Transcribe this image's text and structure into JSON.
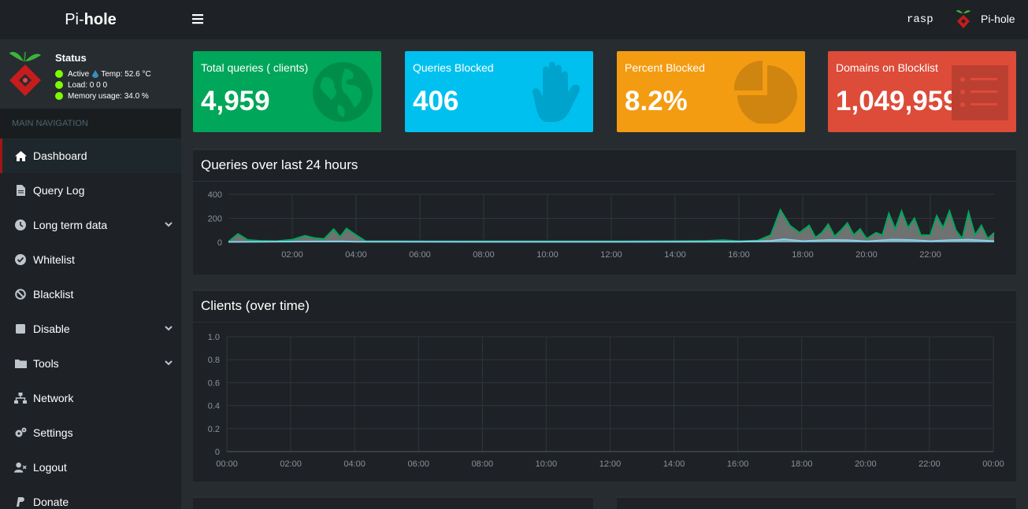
{
  "brand": {
    "prefix": "Pi-",
    "bold": "hole"
  },
  "status": {
    "title": "Status",
    "active": "Active",
    "temp": "Temp: 52.6 °C",
    "load": "Load:  0  0  0",
    "memory": "Memory usage:  34.0 %"
  },
  "nav": {
    "header": "MAIN NAVIGATION",
    "items": [
      {
        "label": "Dashboard",
        "icon": "home-icon"
      },
      {
        "label": "Query Log",
        "icon": "file-icon"
      },
      {
        "label": "Long term data",
        "icon": "clock-icon"
      },
      {
        "label": "Whitelist",
        "icon": "check-circle-icon"
      },
      {
        "label": "Blacklist",
        "icon": "ban-icon"
      },
      {
        "label": "Disable",
        "icon": "stop-icon"
      },
      {
        "label": "Tools",
        "icon": "folder-icon"
      },
      {
        "label": "Network",
        "icon": "network-icon"
      },
      {
        "label": "Settings",
        "icon": "cogs-icon"
      },
      {
        "label": "Logout",
        "icon": "user-times-icon"
      },
      {
        "label": "Donate",
        "icon": "paypal-icon"
      }
    ]
  },
  "topbar": {
    "hostname": "rasp",
    "user": "Pi-hole"
  },
  "boxes": {
    "total": {
      "label": "Total queries (   clients)",
      "value": "4,959",
      "color": "#00a65a",
      "icon": "globe-icon"
    },
    "blocked": {
      "label": "Queries Blocked",
      "value": "406",
      "color": "#00c0ef",
      "icon": "hand-icon"
    },
    "percent": {
      "label": "Percent Blocked",
      "value": "8.2%",
      "color": "#f39c12",
      "icon": "pie-chart-icon"
    },
    "domains": {
      "label": "Domains on Blocklist",
      "value": "1,049,959",
      "color": "#dd4b39",
      "icon": "list-icon"
    }
  },
  "queries_panel": {
    "title": "Queries over last 24 hours"
  },
  "clients_panel": {
    "title": "Clients (over time)"
  },
  "chart_data": [
    {
      "type": "area",
      "title": "Queries over last 24 hours",
      "x_tick_labels": [
        "02:00",
        "04:00",
        "06:00",
        "08:00",
        "10:00",
        "12:00",
        "14:00",
        "16:00",
        "18:00",
        "20:00",
        "22:00"
      ],
      "y_tick_labels": [
        "0",
        "200",
        "400"
      ],
      "ylim": [
        0,
        400
      ],
      "xlim": [
        0,
        24
      ],
      "series": [
        {
          "color": "#00a65a",
          "points": [
            [
              0,
              5
            ],
            [
              0.3,
              70
            ],
            [
              0.6,
              20
            ],
            [
              1,
              12
            ],
            [
              1.5,
              10
            ],
            [
              2,
              22
            ],
            [
              2.4,
              55
            ],
            [
              2.7,
              35
            ],
            [
              3,
              28
            ],
            [
              3.3,
              110
            ],
            [
              3.5,
              45
            ],
            [
              3.7,
              115
            ],
            [
              4,
              60
            ],
            [
              4.3,
              10
            ],
            [
              6,
              8
            ],
            [
              8,
              8
            ],
            [
              10,
              8
            ],
            [
              12,
              8
            ],
            [
              14,
              10
            ],
            [
              15,
              12
            ],
            [
              15.5,
              18
            ],
            [
              16,
              10
            ],
            [
              16.6,
              15
            ],
            [
              17,
              60
            ],
            [
              17.3,
              270
            ],
            [
              17.6,
              140
            ],
            [
              17.9,
              80
            ],
            [
              18.2,
              140
            ],
            [
              18.4,
              40
            ],
            [
              18.6,
              80
            ],
            [
              18.8,
              150
            ],
            [
              19,
              50
            ],
            [
              19.2,
              100
            ],
            [
              19.4,
              160
            ],
            [
              19.6,
              60
            ],
            [
              19.8,
              110
            ],
            [
              20,
              30
            ],
            [
              20.3,
              80
            ],
            [
              20.5,
              60
            ],
            [
              20.7,
              240
            ],
            [
              20.9,
              110
            ],
            [
              21.1,
              260
            ],
            [
              21.3,
              120
            ],
            [
              21.5,
              200
            ],
            [
              21.7,
              60
            ],
            [
              22,
              60
            ],
            [
              22.2,
              220
            ],
            [
              22.4,
              120
            ],
            [
              22.6,
              260
            ],
            [
              22.8,
              100
            ],
            [
              23,
              30
            ],
            [
              23.2,
              250
            ],
            [
              23.4,
              60
            ],
            [
              23.6,
              140
            ],
            [
              23.8,
              30
            ],
            [
              24,
              80
            ]
          ]
        },
        {
          "color": "#87ceeb",
          "points": [
            [
              0,
              3
            ],
            [
              3.5,
              8
            ],
            [
              4,
              5
            ],
            [
              8,
              4
            ],
            [
              12,
              4
            ],
            [
              16,
              5
            ],
            [
              17,
              12
            ],
            [
              17.4,
              25
            ],
            [
              18,
              10
            ],
            [
              18.8,
              20
            ],
            [
              19.4,
              18
            ],
            [
              20,
              8
            ],
            [
              20.8,
              22
            ],
            [
              21.4,
              20
            ],
            [
              22,
              10
            ],
            [
              22.6,
              18
            ],
            [
              23.2,
              22
            ],
            [
              24,
              10
            ]
          ]
        }
      ]
    },
    {
      "type": "line",
      "title": "Clients (over time)",
      "x_tick_labels": [
        "00:00",
        "02:00",
        "04:00",
        "06:00",
        "08:00",
        "10:00",
        "12:00",
        "14:00",
        "16:00",
        "18:00",
        "20:00",
        "22:00",
        "00:00"
      ],
      "y_tick_labels": [
        "0",
        "0.2",
        "0.4",
        "0.6",
        "0.8",
        "1.0"
      ],
      "ylim": [
        0,
        1
      ],
      "series": []
    }
  ]
}
